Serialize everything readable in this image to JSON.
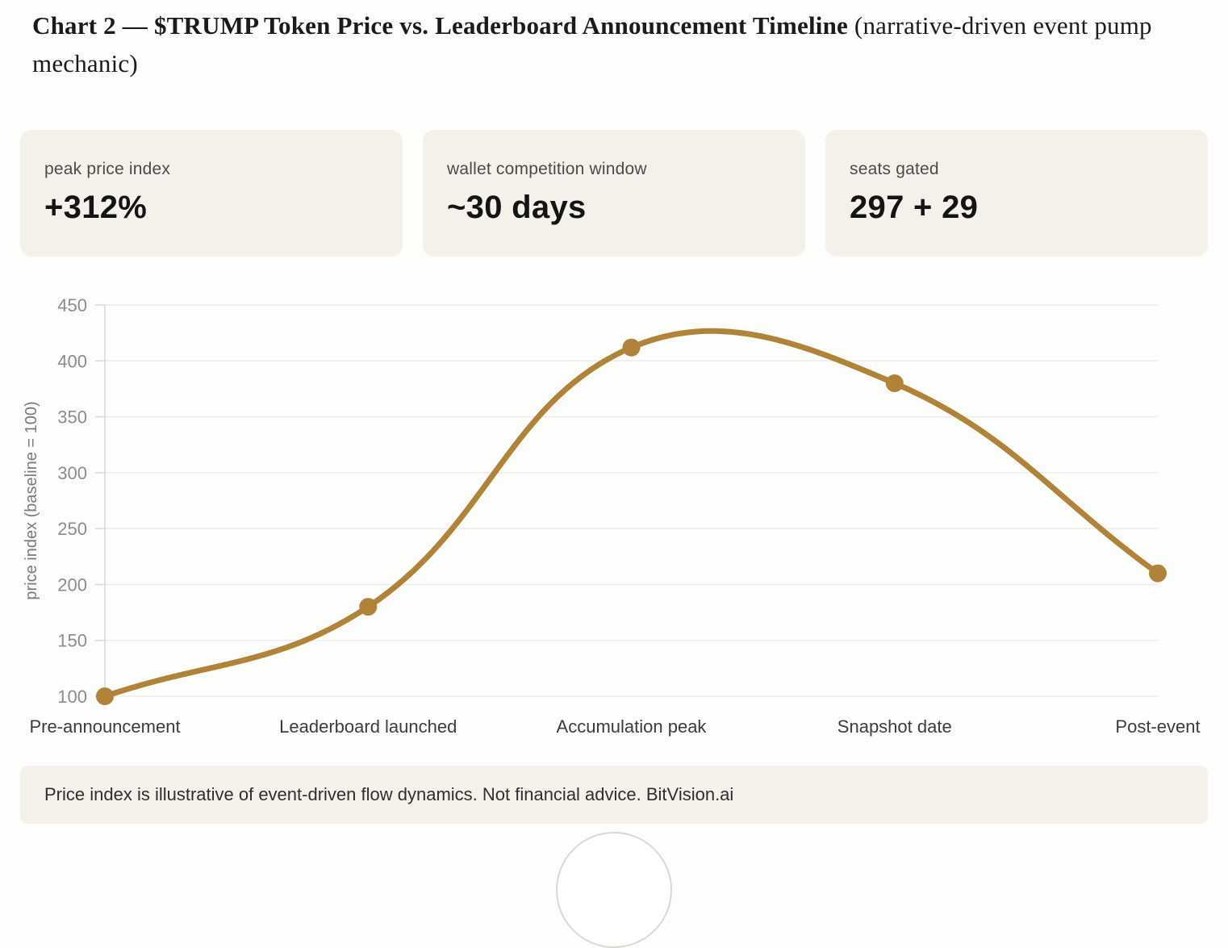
{
  "page": {
    "title_bold": "Chart 2 — $TRUMP Token Price vs. Leaderboard Announcement Timeline",
    "title_normal": " (narrative-driven event pump mechanic)"
  },
  "stats": [
    {
      "label": "peak price index",
      "value": "+312%"
    },
    {
      "label": "wallet competition window",
      "value": "~30 days"
    },
    {
      "label": "seats gated",
      "value": "297 + 29"
    }
  ],
  "chart_data": {
    "type": "line",
    "categories": [
      "Pre-announcement",
      "Leaderboard launched",
      "Accumulation peak",
      "Snapshot date",
      "Post-event"
    ],
    "values": [
      100,
      180,
      412,
      380,
      210
    ],
    "title": "",
    "xlabel": "",
    "ylabel": "price index (baseline = 100)",
    "ylim": [
      100,
      450
    ],
    "yticks": [
      100,
      150,
      200,
      250,
      300,
      350,
      400,
      450
    ],
    "grid": true,
    "legend": false,
    "line_tension": 0.4,
    "line_width": 7,
    "point_radius": 11
  },
  "footer": {
    "note": "Price index is illustrative of event-driven flow dynamics. Not financial advice. BitVision.ai"
  },
  "colors": {
    "line": "#b08338",
    "card_bg": "#f3f1ea",
    "grid": "#edece7",
    "axis": "#d9d9d3",
    "y_tick_label": "#8c8c8c",
    "x_label": "#3c3c3c",
    "axis_title": "#7a7a7a",
    "title_text": "#1b1b1b",
    "footer_text": "#2e2e2e"
  }
}
